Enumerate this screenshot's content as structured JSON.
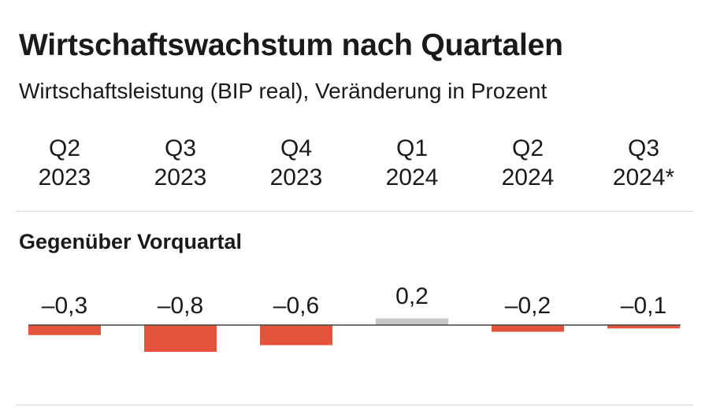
{
  "title": "Wirtschaftswachstum nach Quartalen",
  "subtitle": "Wirtschaftsleistung (BIP real), Veränderung in Prozent",
  "section_title": "Gegenüber Vorquartal",
  "colors": {
    "negative": "#e5533b",
    "positive": "#c8c8c8",
    "baseline": "#444444",
    "divider": "#d4d4d4"
  },
  "chart_data": {
    "type": "bar",
    "categories": [
      {
        "quarter": "Q2",
        "year": "2023"
      },
      {
        "quarter": "Q3",
        "year": "2023"
      },
      {
        "quarter": "Q4",
        "year": "2023"
      },
      {
        "quarter": "Q1",
        "year": "2024"
      },
      {
        "quarter": "Q2",
        "year": "2024"
      },
      {
        "quarter": "Q3",
        "year": "2024*"
      }
    ],
    "values": [
      -0.3,
      -0.8,
      -0.6,
      0.2,
      -0.2,
      -0.1
    ],
    "value_labels": [
      "–0,3",
      "–0,8",
      "–0,6",
      "0,2",
      "–0,2",
      "–0,1"
    ]
  }
}
